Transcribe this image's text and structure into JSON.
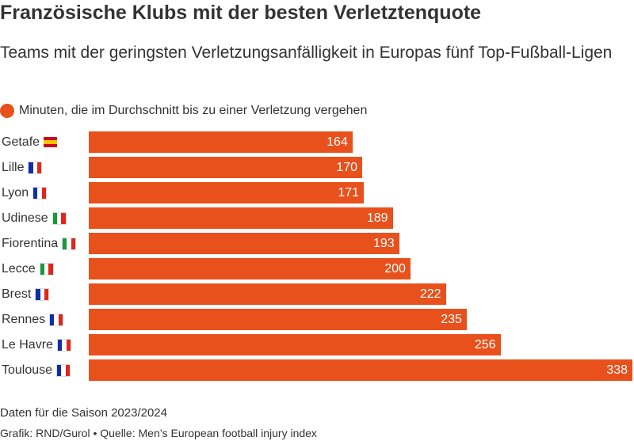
{
  "title": "Französische Klubs mit der besten Verletztenquote",
  "subtitle": "Teams mit der geringsten Verletzungsanfälligkeit in Europas fünf Top-Fußball-Ligen",
  "footer": {
    "note": "Daten für die Saison 2023/2024",
    "source": "Grafik: RND/Gurol • Quelle: Men’s European football injury index"
  },
  "colors": {
    "bar": "#e8511c",
    "text": "#333333",
    "flag_fr": [
      "#0f2fa6",
      "#ffffff",
      "#e1261c"
    ],
    "flag_it": [
      "#169b3a",
      "#ffffff",
      "#e1261c"
    ],
    "flag_es": [
      "#c60b1e",
      "#ffc400",
      "#c60b1e"
    ]
  },
  "chart_data": {
    "type": "bar",
    "orientation": "horizontal",
    "legend": [
      {
        "label": "Minuten, die im Durchschnitt bis zu einer Verletzung vergehen",
        "color": "#e8511c"
      }
    ],
    "legend_position": "top-left",
    "grid": false,
    "xlim": [
      0,
      338
    ],
    "categories": [
      "Getafe",
      "Lille",
      "Lyon",
      "Udinese",
      "Fiorentina",
      "Lecce",
      "Brest",
      "Rennes",
      "Le Havre",
      "Toulouse"
    ],
    "flags": [
      "es-flag-icon",
      "fr-flag-icon",
      "fr-flag-icon",
      "it-flag-icon",
      "it-flag-icon",
      "it-flag-icon",
      "fr-flag-icon",
      "fr-flag-icon",
      "fr-flag-icon",
      "fr-flag-icon"
    ],
    "series": [
      {
        "values": [
          164,
          170,
          171,
          189,
          193,
          200,
          222,
          235,
          256,
          338
        ]
      }
    ]
  }
}
